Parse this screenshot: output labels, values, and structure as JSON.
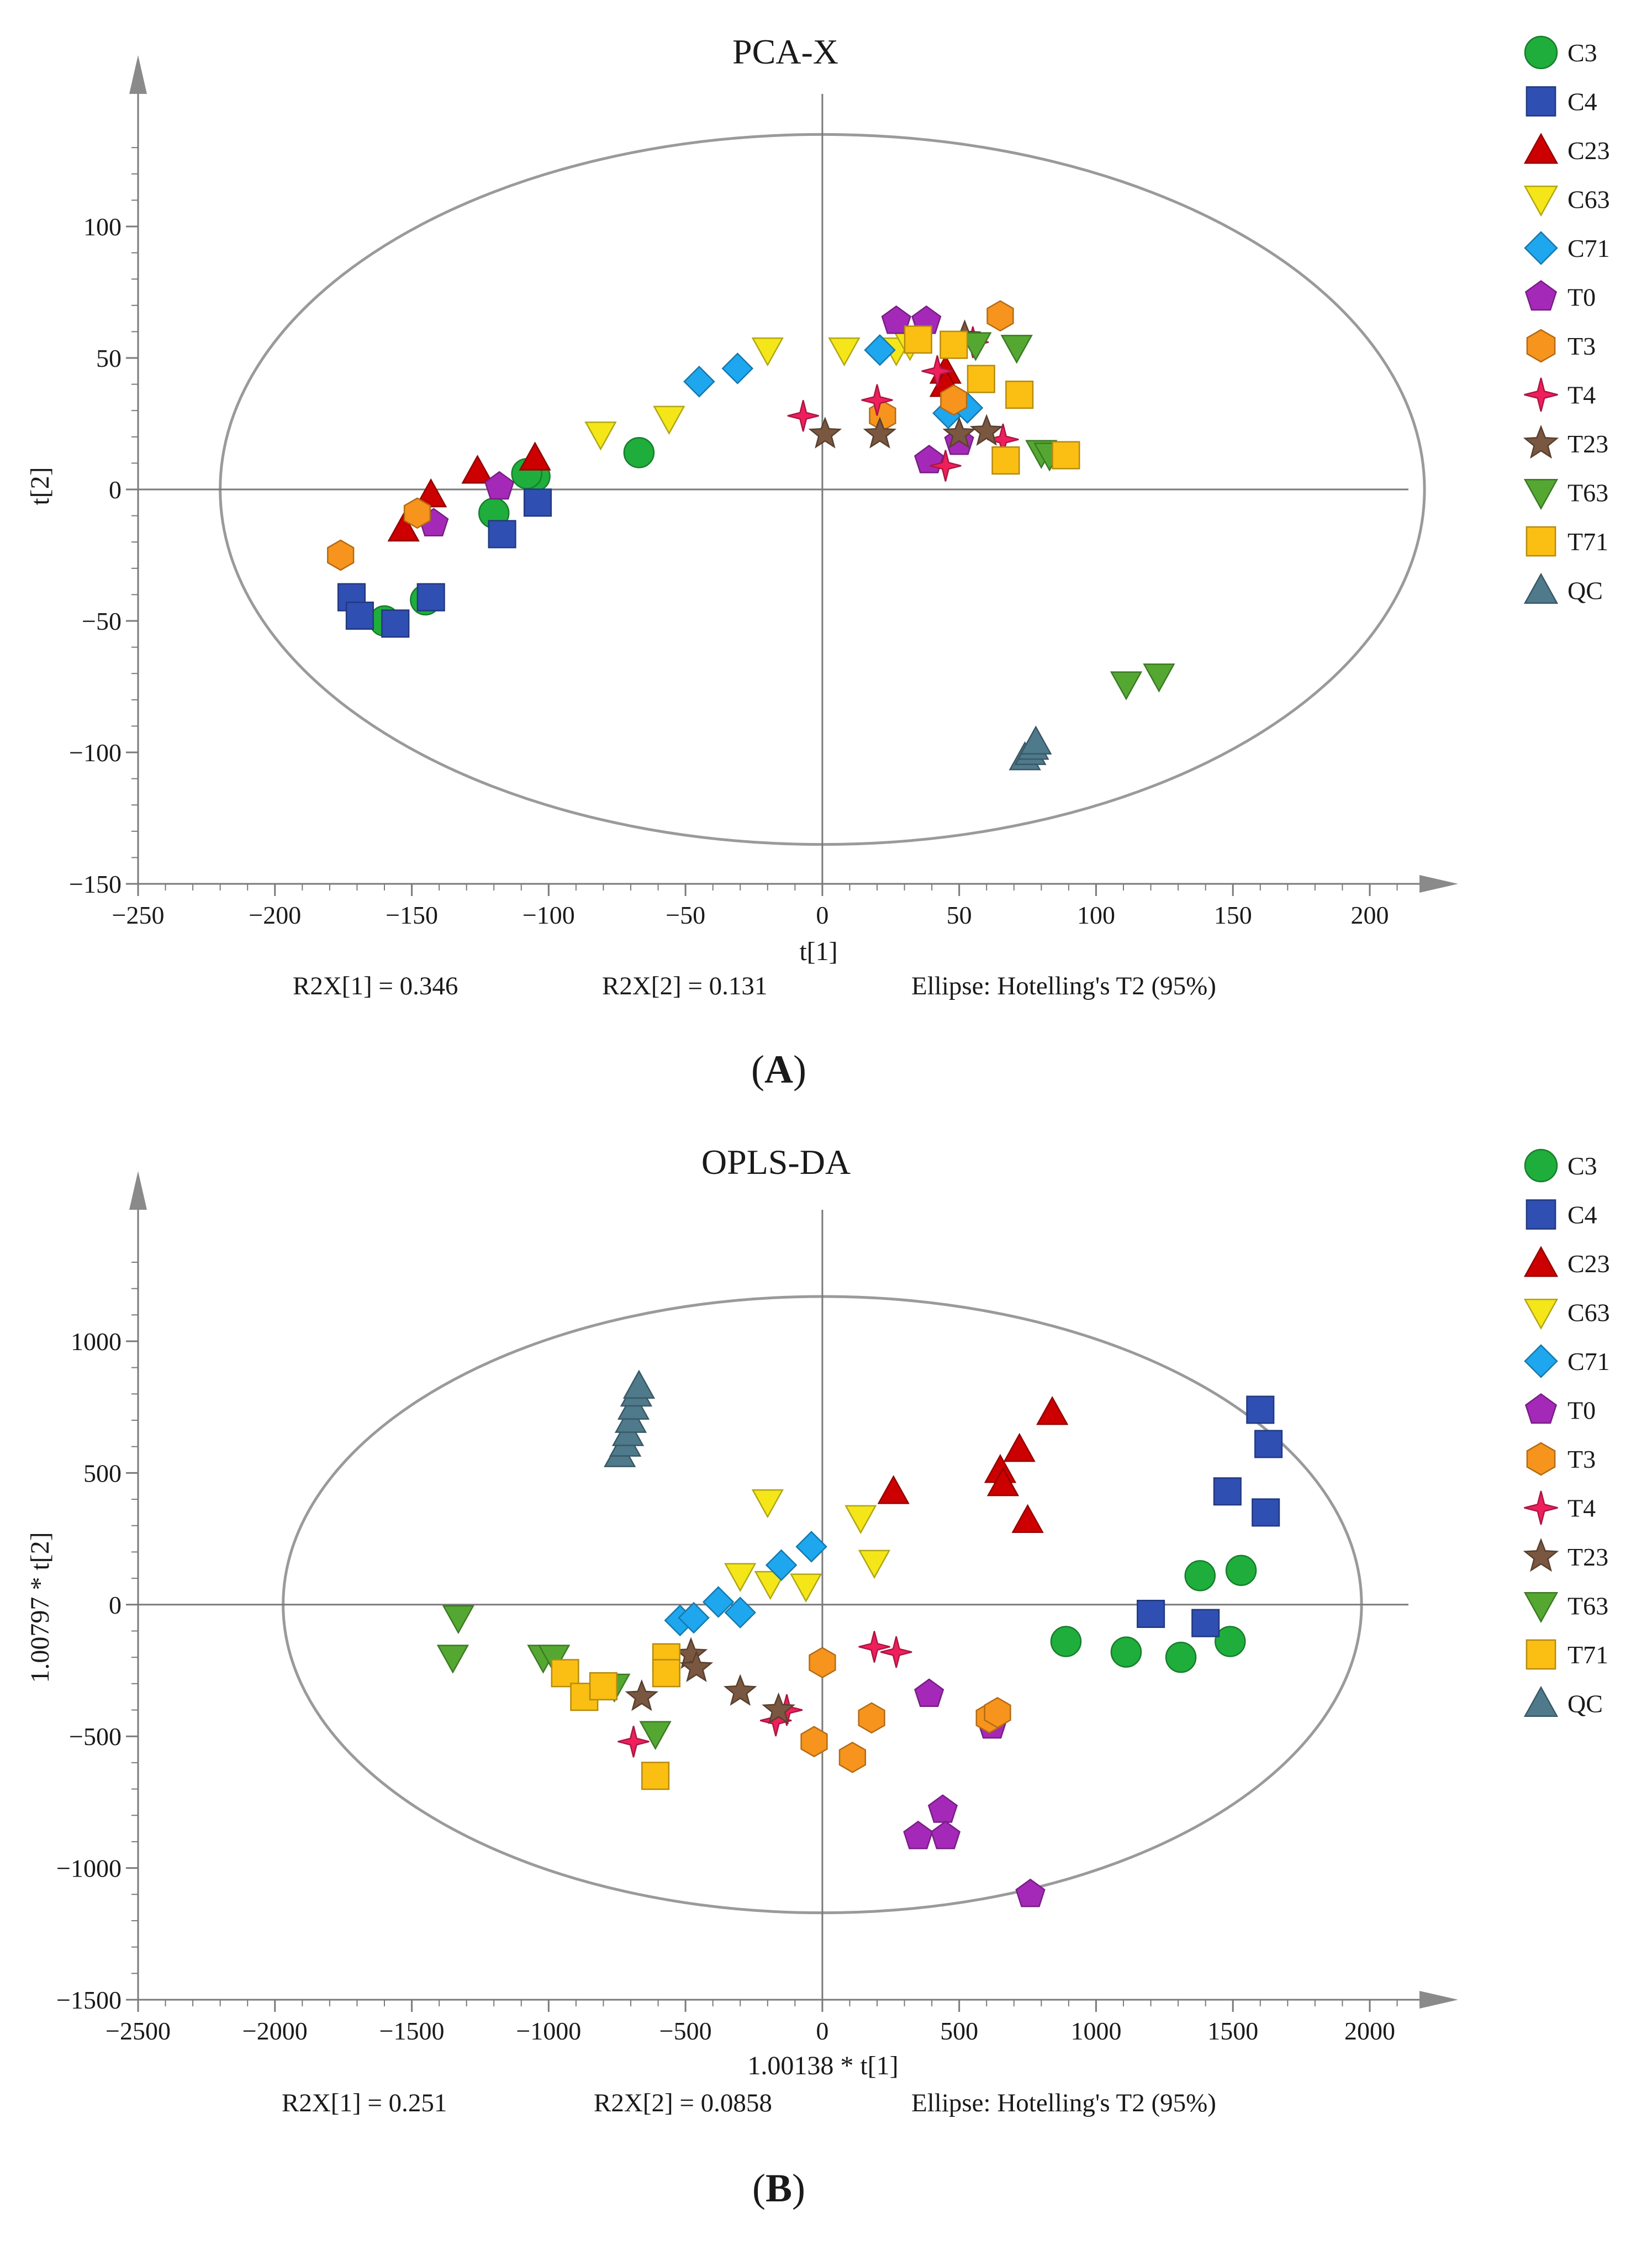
{
  "colors": {
    "C3": "#1fae3c",
    "C4": "#2f4fb2",
    "C23": "#cc0000",
    "C63": "#f5e61a",
    "C71": "#1ea7ee",
    "T0": "#a529b8",
    "T3": "#f7941d",
    "T4": "#ef1f5c",
    "T23": "#7a5740",
    "T63": "#54a832",
    "T71": "#fbbf13",
    "QC": "#4f7a8c"
  },
  "chart_data": [
    {
      "type": "scatter",
      "title": "PCA-X",
      "xlabel": "t[1]",
      "ylabel": "t[2]",
      "xlim": [
        -250,
        250
      ],
      "ylim": [
        -150,
        150
      ],
      "xticks": [
        -250,
        -200,
        -150,
        -100,
        -50,
        0,
        50,
        100,
        150,
        200
      ],
      "yticks": [
        -150,
        -100,
        -50,
        0,
        50,
        100
      ],
      "x_tick_labels": [
        "−250",
        "−200",
        "−150",
        "−100",
        "−50",
        "0",
        "50",
        "100",
        "150",
        "200"
      ],
      "y_tick_labels": [
        "−150",
        "−100",
        "−50",
        "0",
        "50",
        "100"
      ],
      "ellipse": {
        "cx": 0,
        "cy": 0,
        "rx": 220,
        "ry": 135
      },
      "footer": {
        "r2x1": "R2X[1] = 0.346",
        "r2x2": "R2X[2] = 0.131",
        "ellipse_note": "Ellipse: Hotelling's T2 (95%)"
      },
      "panel_label": "A",
      "legend": [
        "C3",
        "C4",
        "C23",
        "C63",
        "C71",
        "T0",
        "T3",
        "T4",
        "T23",
        "T63",
        "T71",
        "QC"
      ],
      "series": [
        {
          "name": "C3",
          "marker": "circle",
          "points": [
            [
              -160,
              -50
            ],
            [
              -145,
              -42
            ],
            [
              -120,
              -9
            ],
            [
              -105,
              5
            ],
            [
              -108,
              6
            ],
            [
              -67,
              14
            ]
          ]
        },
        {
          "name": "C4",
          "marker": "square",
          "points": [
            [
              -172,
              -41
            ],
            [
              -169,
              -48
            ],
            [
              -156,
              -51
            ],
            [
              -143,
              -41
            ],
            [
              -117,
              -17
            ],
            [
              -104,
              -5
            ]
          ]
        },
        {
          "name": "C23",
          "marker": "triangle-up",
          "points": [
            [
              -153,
              -15
            ],
            [
              -143,
              -2
            ],
            [
              -126,
              7
            ],
            [
              -105,
              12
            ],
            [
              45,
              45
            ],
            [
              45,
              40
            ]
          ]
        },
        {
          "name": "C63",
          "marker": "triangle-down",
          "points": [
            [
              -81,
              21
            ],
            [
              -56,
              27
            ],
            [
              -20,
              53
            ],
            [
              8,
              53
            ],
            [
              27,
              53
            ],
            [
              32,
              55
            ]
          ]
        },
        {
          "name": "C71",
          "marker": "diamond",
          "points": [
            [
              -45,
              41
            ],
            [
              -31,
              46
            ],
            [
              21,
              53
            ],
            [
              46,
              29
            ],
            [
              53,
              31
            ]
          ]
        },
        {
          "name": "T0",
          "marker": "pentagon",
          "points": [
            [
              -142,
              -13
            ],
            [
              -118,
              1
            ],
            [
              27,
              64
            ],
            [
              38,
              64
            ],
            [
              39,
              11
            ],
            [
              50,
              18
            ]
          ]
        },
        {
          "name": "T3",
          "marker": "hexagon",
          "points": [
            [
              -176,
              -25
            ],
            [
              -148,
              -9
            ],
            [
              22,
              28
            ],
            [
              48,
              34
            ],
            [
              65,
              66
            ]
          ]
        },
        {
          "name": "T4",
          "marker": "star4",
          "points": [
            [
              -7,
              28
            ],
            [
              20,
              34
            ],
            [
              42,
              45
            ],
            [
              45,
              9
            ],
            [
              55,
              56
            ],
            [
              66,
              19
            ]
          ]
        },
        {
          "name": "T23",
          "marker": "star5",
          "points": [
            [
              1,
              21
            ],
            [
              21,
              21
            ],
            [
              50,
              21
            ],
            [
              60,
              22
            ],
            [
              52,
              58
            ]
          ]
        },
        {
          "name": "T63",
          "marker": "triangle-down",
          "points": [
            [
              56,
              55
            ],
            [
              71,
              54
            ],
            [
              80,
              14
            ],
            [
              83,
              13
            ],
            [
              111,
              -74
            ],
            [
              123,
              -71
            ]
          ]
        },
        {
          "name": "T71",
          "marker": "square",
          "points": [
            [
              35,
              57
            ],
            [
              48,
              55
            ],
            [
              58,
              42
            ],
            [
              67,
              11
            ],
            [
              72,
              36
            ],
            [
              89,
              13
            ]
          ]
        },
        {
          "name": "QC",
          "marker": "triangle-up",
          "points": [
            [
              74,
              -102
            ],
            [
              76,
              -100
            ],
            [
              77,
              -98
            ],
            [
              78,
              -96
            ]
          ]
        }
      ]
    },
    {
      "type": "scatter",
      "title": "OPLS-DA",
      "xlabel": "1.00138 * t[1]",
      "ylabel": "1.00797 * t[2]",
      "xlim": [
        -2500,
        2500
      ],
      "ylim": [
        -1500,
        1500
      ],
      "xticks": [
        -2500,
        -2000,
        -1500,
        -1000,
        -500,
        0,
        500,
        1000,
        1500,
        2000
      ],
      "yticks": [
        -1500,
        -1000,
        -500,
        0,
        500,
        1000
      ],
      "x_tick_labels": [
        "−2500",
        "−2000",
        "−1500",
        "−1000",
        "−500",
        "0",
        "500",
        "1000",
        "1500",
        "2000"
      ],
      "y_tick_labels": [
        "−1500",
        "−1000",
        "−500",
        "0",
        "500",
        "1000"
      ],
      "ellipse": {
        "cx": 0,
        "cy": 0,
        "rx": 1970,
        "ry": 1170
      },
      "footer": {
        "r2x1": "R2X[1] = 0.251",
        "r2x2": "R2X[2] = 0.0858",
        "ellipse_note": "Ellipse: Hotelling's T2 (95%)"
      },
      "panel_label": "B",
      "legend": [
        "C3",
        "C4",
        "C23",
        "C63",
        "C71",
        "T0",
        "T3",
        "T4",
        "T23",
        "T63",
        "T71",
        "QC"
      ],
      "series": [
        {
          "name": "C3",
          "marker": "circle",
          "points": [
            [
              890,
              -140
            ],
            [
              1110,
              -180
            ],
            [
              1310,
              -200
            ],
            [
              1380,
              110
            ],
            [
              1490,
              -140
            ],
            [
              1530,
              130
            ]
          ]
        },
        {
          "name": "C4",
          "marker": "square",
          "points": [
            [
              1200,
              -35
            ],
            [
              1400,
              -70
            ],
            [
              1480,
              430
            ],
            [
              1600,
              740
            ],
            [
              1620,
              350
            ],
            [
              1630,
              610
            ]
          ]
        },
        {
          "name": "C23",
          "marker": "triangle-up",
          "points": [
            [
              260,
              430
            ],
            [
              650,
              510
            ],
            [
              660,
              460
            ],
            [
              720,
              590
            ],
            [
              750,
              320
            ],
            [
              840,
              730
            ]
          ]
        },
        {
          "name": "C63",
          "marker": "triangle-down",
          "points": [
            [
              -200,
              390
            ],
            [
              -300,
              110
            ],
            [
              -190,
              80
            ],
            [
              -60,
              70
            ],
            [
              140,
              330
            ],
            [
              190,
              160
            ]
          ]
        },
        {
          "name": "C71",
          "marker": "diamond",
          "points": [
            [
              -520,
              -60
            ],
            [
              -470,
              -50
            ],
            [
              -380,
              10
            ],
            [
              -300,
              -30
            ],
            [
              -150,
              150
            ],
            [
              -40,
              220
            ]
          ]
        },
        {
          "name": "T0",
          "marker": "pentagon",
          "points": [
            [
              390,
              -340
            ],
            [
              350,
              -880
            ],
            [
              440,
              -780
            ],
            [
              450,
              -880
            ],
            [
              620,
              -460
            ],
            [
              760,
              -1100
            ]
          ]
        },
        {
          "name": "T3",
          "marker": "hexagon",
          "points": [
            [
              0,
              -220
            ],
            [
              -30,
              -520
            ],
            [
              110,
              -580
            ],
            [
              180,
              -430
            ],
            [
              610,
              -430
            ],
            [
              640,
              -410
            ]
          ]
        },
        {
          "name": "T4",
          "marker": "star4",
          "points": [
            [
              -690,
              -520
            ],
            [
              -170,
              -440
            ],
            [
              -130,
              -400
            ],
            [
              190,
              -160
            ],
            [
              270,
              -180
            ]
          ]
        },
        {
          "name": "T23",
          "marker": "star5",
          "points": [
            [
              -660,
              -350
            ],
            [
              -480,
              -190
            ],
            [
              -460,
              -240
            ],
            [
              -300,
              -330
            ],
            [
              -160,
              -400
            ]
          ]
        },
        {
          "name": "T63",
          "marker": "triangle-down",
          "points": [
            [
              -1330,
              -50
            ],
            [
              -1350,
              -200
            ],
            [
              -1020,
              -200
            ],
            [
              -980,
              -200
            ],
            [
              -760,
              -310
            ],
            [
              -610,
              -490
            ]
          ]
        },
        {
          "name": "T71",
          "marker": "square",
          "points": [
            [
              -940,
              -260
            ],
            [
              -870,
              -350
            ],
            [
              -800,
              -310
            ],
            [
              -570,
              -200
            ],
            [
              -570,
              -260
            ],
            [
              -610,
              -650
            ]
          ]
        },
        {
          "name": "QC",
          "marker": "triangle-up",
          "points": [
            [
              -740,
              570
            ],
            [
              -720,
              610
            ],
            [
              -710,
              650
            ],
            [
              -700,
              700
            ],
            [
              -690,
              750
            ],
            [
              -680,
              800
            ],
            [
              -670,
              830
            ]
          ]
        }
      ]
    }
  ]
}
